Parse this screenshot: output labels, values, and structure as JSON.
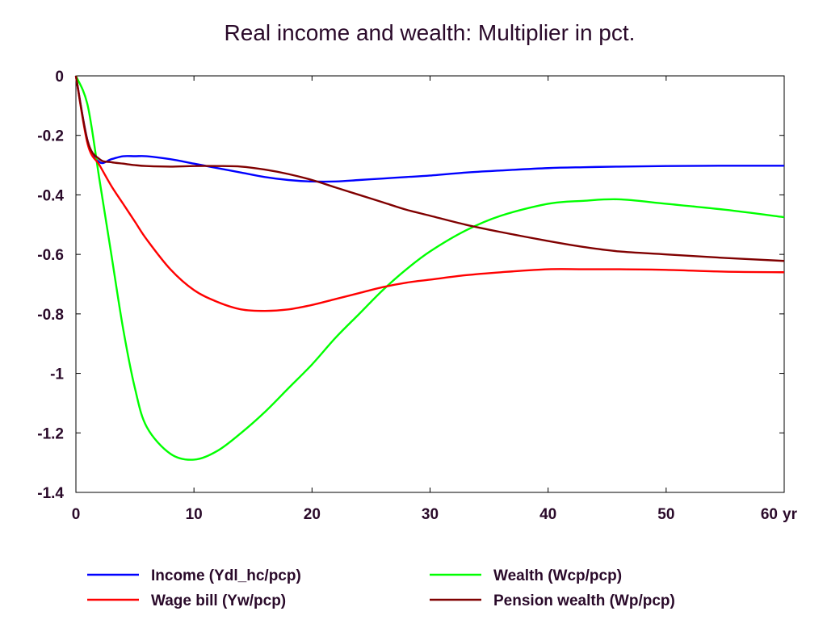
{
  "chart_data": {
    "type": "line",
    "title": "Real income and wealth: Multiplier in pct.",
    "x_unit_label": "yr",
    "xlim": [
      0,
      60
    ],
    "ylim": [
      -1.4,
      0
    ],
    "x_ticks": [
      0,
      10,
      20,
      30,
      40,
      50,
      60
    ],
    "x_tick_labels": [
      "0",
      "10",
      "20",
      "30",
      "40",
      "50",
      "60"
    ],
    "y_ticks": [
      0,
      -0.2,
      -0.4,
      -0.6,
      -0.8,
      -1,
      -1.2,
      -1.4
    ],
    "y_tick_labels": [
      "0",
      "-0.2",
      "-0.4",
      "-0.6",
      "-0.8",
      "-1",
      "-1.2",
      "-1.4"
    ],
    "grid": false,
    "legend_position": "bottom",
    "x": [
      0,
      1,
      2,
      3,
      4,
      5,
      6,
      8,
      10,
      12,
      14,
      16,
      18,
      20,
      22,
      24,
      26,
      28,
      30,
      33,
      36,
      40,
      43,
      46,
      50,
      55,
      60
    ],
    "series": [
      {
        "name": "Income (Ydl_hc/pcp)",
        "color": "#0000ff",
        "values": [
          0,
          -0.22,
          -0.29,
          -0.28,
          -0.27,
          -0.27,
          -0.27,
          -0.28,
          -0.295,
          -0.31,
          -0.325,
          -0.34,
          -0.35,
          -0.355,
          -0.355,
          -0.35,
          -0.345,
          -0.34,
          -0.335,
          -0.325,
          -0.318,
          -0.31,
          -0.307,
          -0.305,
          -0.303,
          -0.302,
          -0.302
        ]
      },
      {
        "name": "Wealth (Wcp/pcp)",
        "color": "#00ff00",
        "values": [
          0,
          -0.1,
          -0.35,
          -0.6,
          -0.85,
          -1.05,
          -1.18,
          -1.27,
          -1.29,
          -1.26,
          -1.2,
          -1.13,
          -1.05,
          -0.97,
          -0.88,
          -0.8,
          -0.72,
          -0.65,
          -0.59,
          -0.52,
          -0.47,
          -0.43,
          -0.42,
          -0.415,
          -0.43,
          -0.45,
          -0.475
        ]
      },
      {
        "name": "Wage bill (Yw/pcp)",
        "color": "#ff0000",
        "values": [
          0,
          -0.23,
          -0.3,
          -0.37,
          -0.43,
          -0.49,
          -0.55,
          -0.65,
          -0.72,
          -0.76,
          -0.785,
          -0.79,
          -0.785,
          -0.77,
          -0.75,
          -0.73,
          -0.71,
          -0.695,
          -0.685,
          -0.67,
          -0.66,
          -0.65,
          -0.65,
          -0.65,
          -0.652,
          -0.658,
          -0.66
        ]
      },
      {
        "name": "Pension wealth (Wp/pcp)",
        "color": "#800000",
        "values": [
          0,
          -0.22,
          -0.28,
          -0.29,
          -0.295,
          -0.3,
          -0.303,
          -0.305,
          -0.303,
          -0.303,
          -0.305,
          -0.315,
          -0.33,
          -0.35,
          -0.375,
          -0.4,
          -0.425,
          -0.45,
          -0.47,
          -0.5,
          -0.525,
          -0.555,
          -0.575,
          -0.59,
          -0.6,
          -0.612,
          -0.622
        ]
      }
    ]
  }
}
